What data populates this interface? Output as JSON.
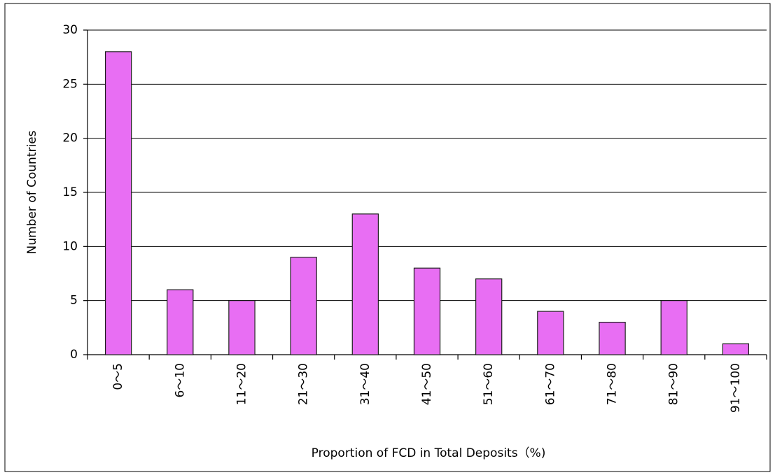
{
  "chart_data": {
    "type": "bar",
    "x_label": "Proportion of FCD in Total Deposits（%)",
    "y_label": "Number of Countries",
    "categories": [
      "0〜5",
      "6〜10",
      "11〜20",
      "21〜30",
      "31〜40",
      "41〜50",
      "51〜60",
      "61〜70",
      "71〜80",
      "81〜90",
      "91〜100"
    ],
    "values": [
      28,
      6,
      5,
      9,
      13,
      8,
      7,
      4,
      3,
      5,
      1
    ],
    "color": "#e145f0",
    "ylim": [
      0,
      30
    ],
    "yticks": [
      0,
      5,
      10,
      15,
      20,
      25,
      30
    ],
    "grid": true
  }
}
